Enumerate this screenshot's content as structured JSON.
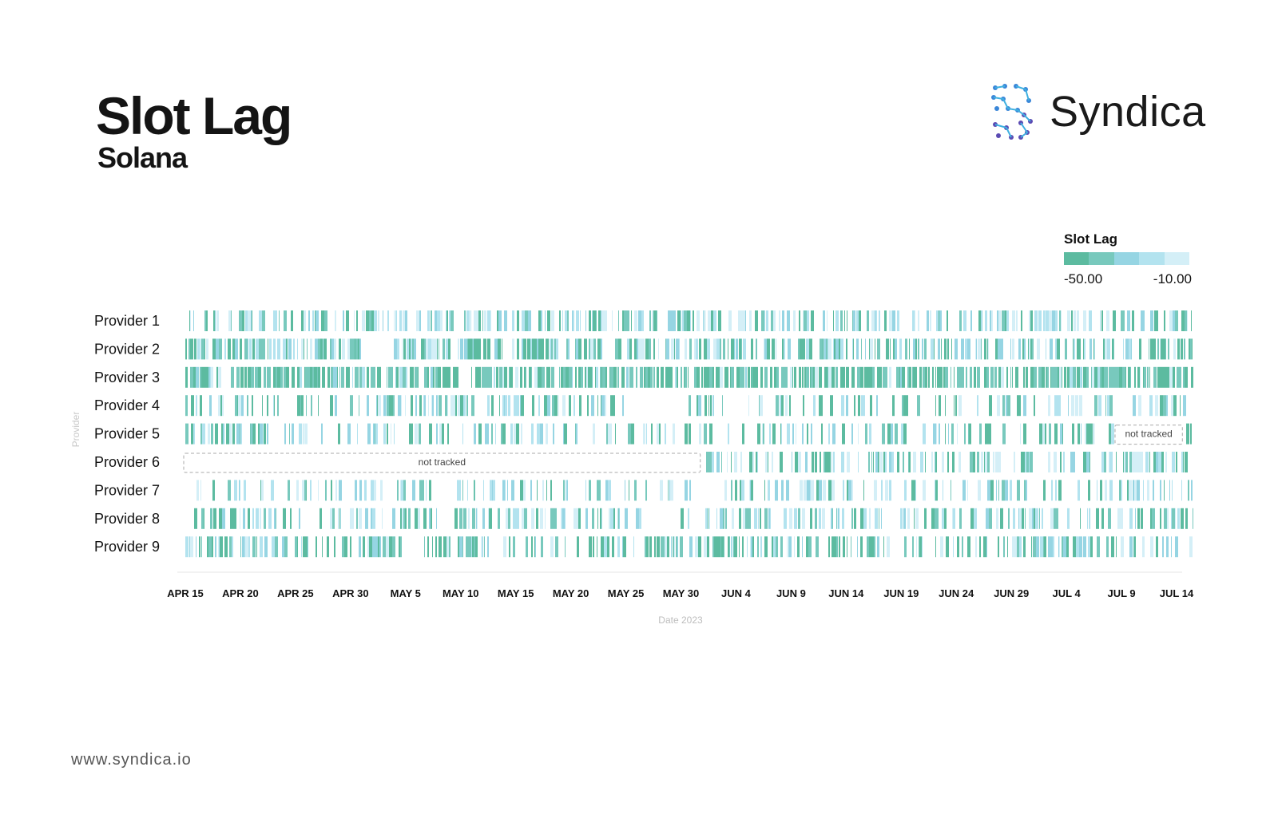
{
  "header": {
    "title": "Slot Lag",
    "subtitle": "Solana",
    "brand": "Syndica"
  },
  "legend": {
    "title": "Slot Lag",
    "min_label": "-50.00",
    "max_label": "-10.00",
    "colors": [
      "#5cbba0",
      "#78c9bd",
      "#96d5e3",
      "#b3e3ef",
      "#d4eff7"
    ]
  },
  "footer": {
    "url": "www.syndica.io"
  },
  "colors": {
    "strong": "#5cbba0",
    "mid": "#8fd0d8",
    "light": "#c9eaf3",
    "axis": "#e6e6e6",
    "not_tracked_border": "#aaaaaa"
  },
  "chart_data": {
    "type": "heatmap",
    "title": "Slot Lag",
    "xlabel": "Date 2023",
    "ylabel": "Provider",
    "x_range": [
      "2023-04-15",
      "2023-07-16"
    ],
    "x_ticks": [
      "APR 15",
      "APR 20",
      "APR 25",
      "APR 30",
      "MAY 5",
      "MAY 10",
      "MAY 15",
      "MAY 20",
      "MAY 25",
      "MAY 30",
      "JUN 4",
      "JUN 9",
      "JUN 14",
      "JUN 19",
      "JUN 24",
      "JUN 29",
      "JUL 4",
      "JUL 9",
      "JUL 14"
    ],
    "color_scale": {
      "min": -50.0,
      "max": -10.0
    },
    "not_tracked_label": "not tracked",
    "rows": [
      {
        "label": "Provider 1",
        "density": 0.55,
        "strength": 0.35,
        "seed": 11
      },
      {
        "label": "Provider 2",
        "density": 0.72,
        "strength": 0.55,
        "seed": 23,
        "gaps": [
          [
            "2023-05-01",
            "2023-05-03"
          ],
          [
            "2023-05-23",
            "2023-05-23"
          ]
        ]
      },
      {
        "label": "Provider 3",
        "density": 0.95,
        "strength": 0.9,
        "seed": 37,
        "gaps": [
          [
            "2023-04-18",
            "2023-04-18"
          ],
          [
            "2023-05-10",
            "2023-05-10"
          ]
        ]
      },
      {
        "label": "Provider 4",
        "density": 0.45,
        "strength": 0.55,
        "seed": 41,
        "gaps": [
          [
            "2023-05-25",
            "2023-05-29"
          ]
        ]
      },
      {
        "label": "Provider 5",
        "density": 0.45,
        "strength": 0.5,
        "seed": 53,
        "not_tracked": [
          [
            "2023-07-09",
            "2023-07-14"
          ]
        ]
      },
      {
        "label": "Provider 6",
        "density": 0.5,
        "strength": 0.45,
        "seed": 67,
        "not_tracked": [
          [
            "2023-04-15",
            "2023-05-31"
          ]
        ]
      },
      {
        "label": "Provider 7",
        "density": 0.45,
        "strength": 0.4,
        "seed": 71
      },
      {
        "label": "Provider 8",
        "density": 0.5,
        "strength": 0.45,
        "seed": 83,
        "gaps": [
          [
            "2023-05-27",
            "2023-05-29"
          ]
        ]
      },
      {
        "label": "Provider 9",
        "density": 0.6,
        "strength": 0.6,
        "seed": 97
      }
    ]
  }
}
